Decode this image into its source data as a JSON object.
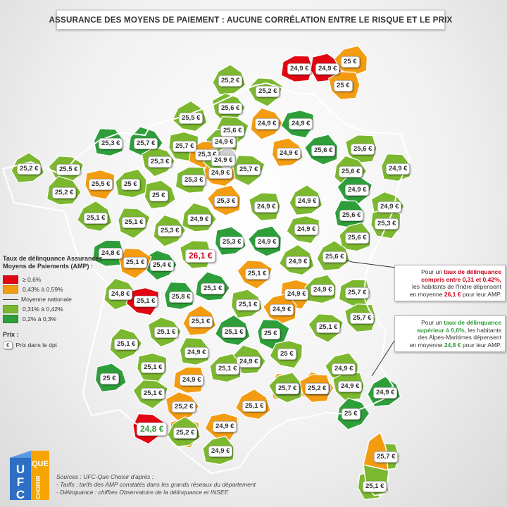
{
  "title": "ASSURANCE DES MOYENS DE PAIEMENT : AUCUNE CORRÉLATION ENTRE LE RISQUE ET LE PRIX",
  "colors": {
    "red": "#e20613",
    "orange": "#f39c12",
    "light_green": "#7cb82f",
    "dark_green": "#2e9e3a",
    "paris": "#d0d0d0"
  },
  "legend": {
    "title": "Taux de délinquance Assurances Moyens de Paiements (AMP) :",
    "items": [
      {
        "label": "≥ 0,6%",
        "color": "#e20613"
      },
      {
        "label": "0,43% à  0,59%",
        "color": "#f39c12"
      },
      {
        "label": "Moyenne nationale",
        "type": "line"
      },
      {
        "label": "0,31% à  0,42%",
        "color": "#7cb82f"
      },
      {
        "label": "0,2% à  0,3%",
        "color": "#2e9e3a"
      }
    ],
    "prix_title": "Prix :",
    "prix_symbol": "€",
    "prix_label": "Prix dans le dpt"
  },
  "callouts": {
    "indre": {
      "l1a": "Pour un ",
      "l1b": "taux de délinquance",
      "l2": "compris entre 0,31 et 0,42%,",
      "l3": "les habitants de l'Indre dépensent",
      "l4a": "en moyenne ",
      "l4b": "26,1 €",
      "l4c": " pour leur AMP."
    },
    "alpes": {
      "l1a": "Pour un ",
      "l1b": "taux de délinquance",
      "l2a": "supérieur à 0,6%,",
      "l2b": " les habitants",
      "l3": "des Alpes-Maritimes dépensent",
      "l4a": "en moyenne ",
      "l4b": "24,8 €",
      "l4c": " pour leur AMP."
    }
  },
  "sources": {
    "l1": "Sources : UFC-Que Choisir d'après :",
    "l2": "- Tarifs : tarifs des AMP constatés dans les grands réseaux du département",
    "l3": "- Délinquance : chiffres Observatoire de la délinquance et INSEE"
  },
  "logo": {
    "ufc": "UFC",
    "que": "QUE",
    "choisir": "CHOISIR"
  },
  "prices": [
    {
      "v": "24,9 €",
      "c": "red"
    },
    {
      "v": "24,9 €",
      "c": "red"
    },
    {
      "v": "25 €",
      "c": "orange"
    },
    {
      "v": "25 €",
      "c": "orange"
    },
    {
      "v": "25,2 €",
      "c": "lg"
    },
    {
      "v": "25,2 €",
      "c": "lg"
    },
    {
      "v": "25,6 €",
      "c": "lg"
    },
    {
      "v": "25,5 €",
      "c": "lg"
    },
    {
      "v": "25,6 €",
      "c": "lg"
    },
    {
      "v": "24,9 €",
      "c": "orange"
    },
    {
      "v": "24,9 €",
      "c": "dg"
    },
    {
      "v": "25,3 €",
      "c": "dg"
    },
    {
      "v": "25,7 €",
      "c": "dg"
    },
    {
      "v": "25,7 €",
      "c": "lg"
    },
    {
      "v": "24,9 €",
      "c": "lg"
    },
    {
      "v": "25,3 €",
      "c": "orange"
    },
    {
      "v": "24,9 €",
      "c": "orange"
    },
    {
      "v": "25,6 €",
      "c": "dg"
    },
    {
      "v": "25,6 €",
      "c": "lg"
    },
    {
      "v": "25,2 €",
      "c": "lg"
    },
    {
      "v": "25,5 €",
      "c": "lg"
    },
    {
      "v": "25,3 €",
      "c": "lg"
    },
    {
      "v": "24,9 €",
      "c": "orange"
    },
    {
      "v": "25,7 €",
      "c": "lg"
    },
    {
      "v": "25,6 €",
      "c": "lg"
    },
    {
      "v": "24,9 €",
      "c": "lg"
    },
    {
      "v": "24,9 €",
      "c": "lg"
    },
    {
      "v": "25,2 €",
      "c": "lg"
    },
    {
      "v": "25,5 €",
      "c": "orange"
    },
    {
      "v": "25 €",
      "c": "lg"
    },
    {
      "v": "25,3 €",
      "c": "lg"
    },
    {
      "v": "25 €",
      "c": "lg"
    },
    {
      "v": "25,3 €",
      "c": "orange"
    },
    {
      "v": "24,9 €",
      "c": "lg"
    },
    {
      "v": "24,9 €",
      "c": "lg"
    },
    {
      "v": "24,9 €",
      "c": "dg"
    },
    {
      "v": "24,9 €",
      "c": "lg"
    },
    {
      "v": "25,1 €",
      "c": "lg"
    },
    {
      "v": "25,1 €",
      "c": "lg"
    },
    {
      "v": "25,3 €",
      "c": "lg"
    },
    {
      "v": "24,9 €",
      "c": "lg"
    },
    {
      "v": "25,6 €",
      "c": "dg"
    },
    {
      "v": "24,9 €",
      "c": "lg"
    },
    {
      "v": "25,3 €",
      "c": "lg"
    },
    {
      "v": "25,6 €",
      "c": "lg"
    },
    {
      "v": "24,8 €",
      "c": "dg"
    },
    {
      "v": "25,3 €",
      "c": "dg"
    },
    {
      "v": "24,9 €",
      "c": "dg"
    },
    {
      "v": "26,1 €",
      "c": "lg",
      "big": "red"
    },
    {
      "v": "25,6 €",
      "c": "lg"
    },
    {
      "v": "25,1 €",
      "c": "orange"
    },
    {
      "v": "25,4 €",
      "c": "dg"
    },
    {
      "v": "24,9 €",
      "c": "lg"
    },
    {
      "v": "25,1 €",
      "c": "orange"
    },
    {
      "v": "24,8 €",
      "c": "lg"
    },
    {
      "v": "25,1 €",
      "c": "red"
    },
    {
      "v": "25,8 €",
      "c": "dg"
    },
    {
      "v": "25,1 €",
      "c": "dg"
    },
    {
      "v": "24,9 €",
      "c": "orange"
    },
    {
      "v": "24,9 €",
      "c": "lg"
    },
    {
      "v": "25,7 €",
      "c": "lg"
    },
    {
      "v": "25,1 €",
      "c": "lg"
    },
    {
      "v": "24,9 €",
      "c": "orange"
    },
    {
      "v": "25,7 €",
      "c": "lg"
    },
    {
      "v": "25,1 €",
      "c": "orange"
    },
    {
      "v": "25,1 €",
      "c": "lg"
    },
    {
      "v": "25,1 €",
      "c": "lg"
    },
    {
      "v": "25,1 €",
      "c": "dg"
    },
    {
      "v": "25 €",
      "c": "dg"
    },
    {
      "v": "25,1 €",
      "c": "lg"
    },
    {
      "v": "25 €",
      "c": "lg"
    },
    {
      "v": "24,9 €",
      "c": "lg"
    },
    {
      "v": "24,9 €",
      "c": "lg"
    },
    {
      "v": "25,1 €",
      "c": "lg"
    },
    {
      "v": "25,1 €",
      "c": "lg"
    },
    {
      "v": "24,9 €",
      "c": "orange"
    },
    {
      "v": "25 €",
      "c": "dg"
    },
    {
      "v": "24,9 €",
      "c": "lg"
    },
    {
      "v": "24,9 €",
      "c": "lg"
    },
    {
      "v": "24,9 €",
      "c": "dg"
    },
    {
      "v": "25,1 €",
      "c": "lg"
    },
    {
      "v": "25,2 €",
      "c": "orange"
    },
    {
      "v": "25,1 €",
      "c": "orange"
    },
    {
      "v": "24,8 €",
      "c": "red",
      "big": "green"
    },
    {
      "v": "25 €",
      "c": "dg"
    },
    {
      "v": "24,9 €",
      "c": "orange"
    },
    {
      "v": "25,1 €",
      "c": "orange"
    },
    {
      "v": "24,9 €",
      "c": "orange"
    },
    {
      "v": "24,8 €",
      "c": "orange"
    },
    {
      "v": "24,9 €",
      "c": "lg"
    },
    {
      "v": "25,7 €",
      "c": "lg"
    },
    {
      "v": "25,1 €",
      "c": "lg"
    },
    {
      "v": "25,7 €",
      "c": "lg"
    },
    {
      "v": "25,2 €",
      "c": "orange"
    },
    {
      "v": "25,2 €",
      "c": "lg"
    }
  ]
}
